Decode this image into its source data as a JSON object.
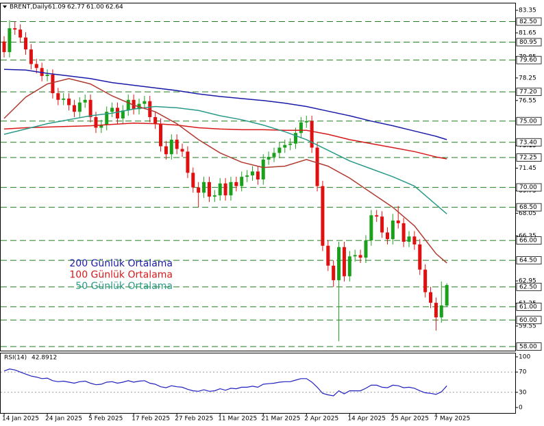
{
  "chart_data": {
    "type": "candlestick",
    "title": "BRENT,Daily",
    "last_bar_labels": [
      "61.09",
      "62.77",
      "61.00",
      "62.64"
    ],
    "categories": [
      "14 Jan 2025",
      null,
      null,
      null,
      null,
      null,
      null,
      null,
      "24 Jan 2025",
      null,
      null,
      null,
      null,
      null,
      null,
      null,
      "5 Feb 2025",
      null,
      null,
      null,
      null,
      null,
      null,
      null,
      "17 Feb 2025",
      null,
      null,
      null,
      null,
      null,
      null,
      null,
      "27 Feb 2025",
      null,
      null,
      null,
      null,
      null,
      null,
      null,
      "11 Mar 2025",
      null,
      null,
      null,
      null,
      null,
      null,
      null,
      "21 Mar 2025",
      null,
      null,
      null,
      null,
      null,
      null,
      null,
      "2 Apr 2025",
      null,
      null,
      null,
      null,
      null,
      null,
      null,
      "14 Apr 2025",
      null,
      null,
      null,
      null,
      null,
      null,
      null,
      "25 Apr 2025",
      null,
      null,
      null,
      null,
      null,
      null,
      null,
      "7 May 2025",
      null,
      null
    ],
    "open": [
      81.0,
      80.2,
      82.0,
      81.9,
      81.3,
      80.4,
      79.3,
      79.0,
      78.4,
      78.5,
      77.1,
      76.6,
      76.7,
      76.2,
      75.7,
      76.4,
      76.6,
      75.3,
      74.5,
      74.7,
      75.7,
      76.0,
      75.2,
      75.8,
      76.6,
      75.9,
      76.3,
      76.5,
      75.3,
      74.8,
      73.1,
      72.5,
      73.6,
      72.9,
      72.7,
      71.1,
      70.0,
      69.6,
      70.4,
      69.3,
      69.4,
      70.3,
      69.4,
      70.4,
      70.1,
      70.8,
      70.9,
      71.2,
      70.6,
      72.1,
      72.3,
      72.6,
      73.0,
      73.2,
      73.3,
      74.1,
      74.9,
      75.0,
      73.0,
      70.1,
      65.6,
      64.1,
      63.0,
      65.5,
      63.3,
      64.8,
      64.9,
      64.7,
      66.0,
      67.9,
      67.8,
      66.6,
      66.1,
      67.5,
      67.3,
      65.9,
      66.3,
      65.7,
      63.8,
      62.1,
      61.3,
      60.2,
      61.09
    ],
    "high": [
      81.4,
      82.6,
      82.5,
      82.3,
      81.7,
      80.8,
      79.7,
      79.4,
      78.9,
      78.9,
      77.5,
      77.1,
      77.1,
      76.6,
      76.8,
      77.0,
      77.0,
      75.7,
      75.1,
      76.1,
      76.4,
      76.4,
      76.2,
      77.0,
      77.0,
      76.7,
      76.9,
      76.9,
      75.7,
      75.2,
      73.5,
      74.0,
      74.0,
      73.3,
      73.1,
      71.5,
      70.4,
      70.8,
      70.8,
      69.8,
      70.7,
      70.7,
      70.8,
      70.8,
      71.2,
      71.3,
      71.6,
      71.6,
      72.5,
      72.7,
      73.0,
      73.4,
      73.6,
      73.7,
      74.5,
      75.3,
      75.4,
      75.4,
      73.4,
      70.5,
      66.0,
      64.5,
      65.9,
      65.9,
      65.2,
      65.3,
      65.3,
      66.4,
      68.3,
      68.3,
      68.2,
      67.0,
      68.0,
      68.6,
      67.7,
      66.7,
      66.7,
      66.1,
      64.2,
      62.5,
      61.7,
      62.9,
      62.77
    ],
    "low": [
      79.8,
      79.8,
      81.5,
      80.9,
      80.0,
      78.9,
      78.6,
      78.0,
      78.0,
      76.7,
      76.2,
      76.2,
      75.8,
      75.3,
      75.3,
      76.0,
      74.9,
      74.1,
      74.1,
      74.3,
      75.3,
      74.8,
      74.8,
      75.4,
      75.5,
      75.5,
      75.9,
      74.9,
      74.4,
      72.7,
      72.1,
      72.1,
      72.5,
      72.3,
      70.7,
      69.6,
      68.5,
      69.2,
      68.9,
      68.9,
      69.0,
      69.0,
      69.0,
      69.7,
      69.7,
      70.4,
      70.5,
      70.2,
      70.2,
      71.7,
      71.9,
      72.2,
      72.6,
      72.8,
      72.9,
      73.7,
      74.5,
      72.6,
      69.7,
      65.2,
      63.7,
      62.5,
      58.4,
      62.9,
      62.9,
      64.4,
      64.3,
      64.3,
      65.6,
      67.4,
      66.2,
      65.7,
      65.7,
      66.9,
      65.5,
      65.5,
      65.3,
      63.4,
      61.7,
      60.9,
      59.2,
      59.8,
      61.0
    ],
    "close": [
      80.2,
      82.0,
      81.9,
      81.3,
      80.4,
      79.3,
      79.0,
      78.4,
      78.5,
      77.1,
      76.6,
      76.7,
      76.2,
      75.7,
      76.4,
      76.6,
      75.3,
      74.5,
      74.7,
      75.7,
      76.0,
      75.2,
      75.8,
      76.6,
      75.9,
      76.3,
      76.5,
      75.3,
      74.8,
      73.1,
      72.5,
      73.6,
      72.9,
      72.7,
      71.1,
      70.0,
      69.6,
      70.4,
      69.3,
      69.4,
      70.3,
      69.4,
      70.4,
      70.1,
      70.8,
      70.9,
      71.2,
      70.6,
      72.1,
      72.3,
      72.6,
      73.0,
      73.2,
      73.3,
      74.1,
      74.9,
      75.0,
      73.0,
      70.1,
      65.6,
      64.1,
      63.0,
      65.5,
      63.3,
      64.8,
      64.9,
      64.7,
      66.0,
      67.9,
      67.8,
      66.6,
      66.1,
      67.5,
      67.3,
      65.9,
      66.3,
      65.7,
      63.8,
      62.1,
      61.3,
      60.2,
      61.1,
      62.64
    ],
    "up_color": "#1aa01a",
    "down_color": "#e01010",
    "ylim": [
      57.69,
      83.87
    ],
    "yticks": [
      83.35,
      81.65,
      79.85,
      78.25,
      76.55,
      73.15,
      71.45,
      69.75,
      68.05,
      66.35,
      62.95,
      61.25,
      59.55
    ],
    "level_color": "#1e7e1e",
    "levels": [
      {
        "value": 82.5,
        "label": "82.50"
      },
      {
        "value": 80.95,
        "label": "80.95"
      },
      {
        "value": 79.6,
        "label": "79.60"
      },
      {
        "value": 77.2,
        "label": "77.20"
      },
      {
        "value": 75,
        "label": "75.00"
      },
      {
        "value": 73.4,
        "label": "73.40"
      },
      {
        "value": 72.25,
        "label": "72.25"
      },
      {
        "value": 70,
        "label": "70.00"
      },
      {
        "value": 68.5,
        "label": "68.50"
      },
      {
        "value": 66,
        "label": "66.00"
      },
      {
        "value": 64.5,
        "label": "64.50"
      },
      {
        "value": 62.5,
        "label": "62.50"
      },
      {
        "value": 61,
        "label": "61.00"
      },
      {
        "value": 60,
        "label": "60.00"
      },
      {
        "value": 58,
        "label": "58.00"
      }
    ],
    "series": [
      {
        "name": "200 Günlük Ortalama",
        "color": "#1a1aa8",
        "x": [
          0,
          4,
          8,
          12,
          16,
          20,
          24,
          28,
          32,
          36,
          40,
          44,
          48,
          52,
          56,
          60,
          64,
          68,
          72,
          76,
          80,
          82
        ],
        "values": [
          78.9,
          78.85,
          78.6,
          78.4,
          78.2,
          77.9,
          77.7,
          77.5,
          77.3,
          77.05,
          76.85,
          76.7,
          76.55,
          76.35,
          76.1,
          75.75,
          75.4,
          75.0,
          74.65,
          74.25,
          73.85,
          73.6
        ]
      },
      {
        "name": "100 Günlük Ortalama",
        "color": "#d81818",
        "x": [
          0,
          4,
          8,
          12,
          16,
          20,
          24,
          28,
          32,
          36,
          40,
          44,
          48,
          52,
          56,
          60,
          64,
          68,
          72,
          76,
          80,
          82
        ],
        "values": [
          74.4,
          74.5,
          74.55,
          74.6,
          74.65,
          74.75,
          74.85,
          74.8,
          74.7,
          74.5,
          74.4,
          74.35,
          74.35,
          74.3,
          74.3,
          74.0,
          73.6,
          73.3,
          73.0,
          72.7,
          72.3,
          72.15
        ]
      },
      {
        "name": "50 Günlük Ortalama",
        "color": "#2a9a88",
        "x": [
          0,
          4,
          8,
          12,
          16,
          20,
          24,
          28,
          32,
          36,
          40,
          44,
          48,
          52,
          56,
          60,
          64,
          68,
          72,
          76,
          80,
          82
        ],
        "values": [
          74.0,
          74.4,
          74.8,
          75.1,
          75.4,
          75.6,
          75.9,
          76.1,
          76.0,
          75.8,
          75.4,
          75.1,
          74.7,
          74.2,
          73.6,
          72.8,
          72.0,
          71.4,
          70.8,
          70.1,
          68.7,
          68.0
        ]
      },
      {
        "color": "#b03a30",
        "x": [
          0,
          4,
          8,
          12,
          16,
          20,
          24,
          28,
          32,
          36,
          40,
          44,
          48,
          52,
          56,
          60,
          64,
          68,
          72,
          76,
          80,
          82
        ],
        "values": [
          75.2,
          76.8,
          77.8,
          78.2,
          77.8,
          76.9,
          76.2,
          75.7,
          74.8,
          73.6,
          72.6,
          71.9,
          71.5,
          71.6,
          72.1,
          71.6,
          70.7,
          69.6,
          68.5,
          67.1,
          65.0,
          64.3
        ]
      }
    ],
    "rsi": {
      "title": "RSI(14)",
      "color": "#2020c0",
      "ylim": [
        0,
        100
      ],
      "yticks": [
        100,
        70,
        30,
        0
      ],
      "levels": [
        70,
        30
      ],
      "values": [
        72,
        76,
        74,
        70,
        66,
        62,
        60,
        57,
        58,
        53,
        51,
        52,
        50,
        48,
        51,
        52,
        48,
        45,
        46,
        50,
        51,
        48,
        50,
        53,
        50,
        52,
        53,
        48,
        46,
        41,
        39,
        43,
        41,
        40,
        36,
        33,
        32,
        35,
        32,
        33,
        37,
        34,
        38,
        37,
        40,
        40,
        42,
        40,
        46,
        47,
        48,
        50,
        51,
        51,
        54,
        57,
        57,
        50,
        40,
        28,
        25,
        23,
        33,
        27,
        33,
        33,
        33,
        38,
        44,
        44,
        40,
        39,
        44,
        43,
        39,
        40,
        38,
        33,
        29,
        28,
        26,
        31,
        42.8912
      ]
    }
  }
}
